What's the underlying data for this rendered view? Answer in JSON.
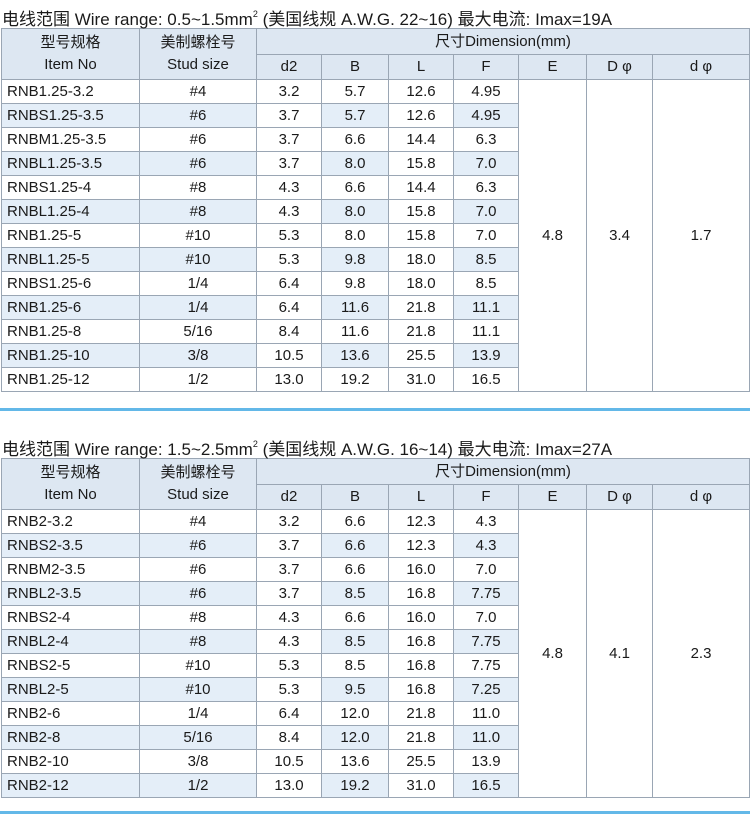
{
  "headers": {
    "model_cn": "型号规格",
    "model_en": "Item No",
    "stud_cn": "美制螺栓号",
    "stud_en": "Stud size",
    "dimension": "尺寸Dimension(mm)",
    "cols": [
      "d2",
      "B",
      "L",
      "F",
      "E",
      "D φ",
      "d φ"
    ]
  },
  "sections": [
    {
      "range_prefix": "电线范围 Wire range: 0.5~1.5mm",
      "range_sup": "2",
      "range_suffix": " (美国线规 A.W.G. 22~16)  最大电流: Imax=19A",
      "E": "4.8",
      "D": "3.4",
      "d": "1.7",
      "rows": [
        {
          "item": "RNB1.25-3.2",
          "stud": "#4",
          "d2": "3.2",
          "B": "5.7",
          "L": "12.6",
          "F": "4.95"
        },
        {
          "item": "RNBS1.25-3.5",
          "stud": "#6",
          "d2": "3.7",
          "B": "5.7",
          "L": "12.6",
          "F": "4.95"
        },
        {
          "item": "RNBM1.25-3.5",
          "stud": "#6",
          "d2": "3.7",
          "B": "6.6",
          "L": "14.4",
          "F": "6.3"
        },
        {
          "item": "RNBL1.25-3.5",
          "stud": "#6",
          "d2": "3.7",
          "B": "8.0",
          "L": "15.8",
          "F": "7.0"
        },
        {
          "item": "RNBS1.25-4",
          "stud": "#8",
          "d2": "4.3",
          "B": "6.6",
          "L": "14.4",
          "F": "6.3"
        },
        {
          "item": "RNBL1.25-4",
          "stud": "#8",
          "d2": "4.3",
          "B": "8.0",
          "L": "15.8",
          "F": "7.0"
        },
        {
          "item": "RNB1.25-5",
          "stud": "#10",
          "d2": "5.3",
          "B": "8.0",
          "L": "15.8",
          "F": "7.0"
        },
        {
          "item": "RNBL1.25-5",
          "stud": "#10",
          "d2": "5.3",
          "B": "9.8",
          "L": "18.0",
          "F": "8.5"
        },
        {
          "item": "RNBS1.25-6",
          "stud": "1/4",
          "d2": "6.4",
          "B": "9.8",
          "L": "18.0",
          "F": "8.5"
        },
        {
          "item": "RNB1.25-6",
          "stud": "1/4",
          "d2": "6.4",
          "B": "11.6",
          "L": "21.8",
          "F": "11.1"
        },
        {
          "item": "RNB1.25-8",
          "stud": "5/16",
          "d2": "8.4",
          "B": "11.6",
          "L": "21.8",
          "F": "11.1"
        },
        {
          "item": "RNB1.25-10",
          "stud": "3/8",
          "d2": "10.5",
          "B": "13.6",
          "L": "25.5",
          "F": "13.9"
        },
        {
          "item": "RNB1.25-12",
          "stud": "1/2",
          "d2": "13.0",
          "B": "19.2",
          "L": "31.0",
          "F": "16.5"
        }
      ]
    },
    {
      "range_prefix": "电线范围 Wire range: 1.5~2.5mm",
      "range_sup": "2",
      "range_suffix": " (美国线规 A.W.G. 16~14)  最大电流: Imax=27A",
      "E": "4.8",
      "D": "4.1",
      "d": "2.3",
      "rows": [
        {
          "item": "RNB2-3.2",
          "stud": "#4",
          "d2": "3.2",
          "B": "6.6",
          "L": "12.3",
          "F": "4.3"
        },
        {
          "item": "RNBS2-3.5",
          "stud": "#6",
          "d2": "3.7",
          "B": "6.6",
          "L": "12.3",
          "F": "4.3"
        },
        {
          "item": "RNBM2-3.5",
          "stud": "#6",
          "d2": "3.7",
          "B": "6.6",
          "L": "16.0",
          "F": "7.0"
        },
        {
          "item": "RNBL2-3.5",
          "stud": "#6",
          "d2": "3.7",
          "B": "8.5",
          "L": "16.8",
          "F": "7.75"
        },
        {
          "item": "RNBS2-4",
          "stud": "#8",
          "d2": "4.3",
          "B": "6.6",
          "L": "16.0",
          "F": "7.0"
        },
        {
          "item": "RNBL2-4",
          "stud": "#8",
          "d2": "4.3",
          "B": "8.5",
          "L": "16.8",
          "F": "7.75"
        },
        {
          "item": "RNBS2-5",
          "stud": "#10",
          "d2": "5.3",
          "B": "8.5",
          "L": "16.8",
          "F": "7.75"
        },
        {
          "item": "RNBL2-5",
          "stud": "#10",
          "d2": "5.3",
          "B": "9.5",
          "L": "16.8",
          "F": "7.25"
        },
        {
          "item": "RNB2-6",
          "stud": "1/4",
          "d2": "6.4",
          "B": "12.0",
          "L": "21.8",
          "F": "11.0"
        },
        {
          "item": "RNB2-8",
          "stud": "5/16",
          "d2": "8.4",
          "B": "12.0",
          "L": "21.8",
          "F": "11.0"
        },
        {
          "item": "RNB2-10",
          "stud": "3/8",
          "d2": "10.5",
          "B": "13.6",
          "L": "25.5",
          "F": "13.9"
        },
        {
          "item": "RNB2-12",
          "stud": "1/2",
          "d2": "13.0",
          "B": "19.2",
          "L": "31.0",
          "F": "16.5"
        }
      ]
    }
  ]
}
